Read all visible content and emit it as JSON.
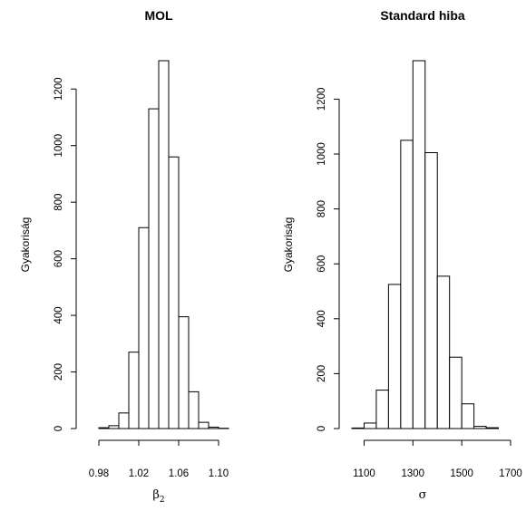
{
  "chart_data": [
    {
      "type": "bar",
      "title": "MOL",
      "ylabel": "Gyakoriság",
      "xlabel": "β",
      "xlabel_subscript": "2",
      "bin_edges": [
        0.98,
        0.99,
        1.0,
        1.01,
        1.02,
        1.03,
        1.04,
        1.05,
        1.06,
        1.07,
        1.08,
        1.09,
        1.1,
        1.11
      ],
      "values": [
        3,
        10,
        55,
        270,
        710,
        1130,
        1300,
        960,
        395,
        130,
        22,
        5,
        1
      ],
      "xlim": [
        0.97,
        1.11
      ],
      "ylim": [
        0,
        1300
      ],
      "xticks": [
        {
          "v": 0.98,
          "label": "0.98"
        },
        {
          "v": 1.02,
          "label": "1.02"
        },
        {
          "v": 1.06,
          "label": "1.06"
        },
        {
          "v": 1.1,
          "label": "1.10"
        }
      ],
      "yticks": [
        {
          "v": 0,
          "label": "0"
        },
        {
          "v": 200,
          "label": "200"
        },
        {
          "v": 400,
          "label": "400"
        },
        {
          "v": 600,
          "label": "600"
        },
        {
          "v": 800,
          "label": "800"
        },
        {
          "v": 1000,
          "label": "1000"
        },
        {
          "v": 1200,
          "label": "1200"
        }
      ],
      "grid": false
    },
    {
      "type": "bar",
      "title": "Standard hiba",
      "ylabel": "Gyakoriság",
      "xlabel": "σ",
      "bin_edges": [
        1050,
        1100,
        1150,
        1200,
        1250,
        1300,
        1350,
        1400,
        1450,
        1500,
        1550,
        1600,
        1650
      ],
      "values": [
        2,
        20,
        140,
        525,
        1050,
        1340,
        1005,
        555,
        260,
        90,
        8,
        3
      ],
      "xlim": [
        1050,
        1700
      ],
      "ylim": [
        0,
        1340
      ],
      "xticks": [
        {
          "v": 1100,
          "label": "1100"
        },
        {
          "v": 1300,
          "label": "1300"
        },
        {
          "v": 1500,
          "label": "1500"
        },
        {
          "v": 1700,
          "label": "1700"
        }
      ],
      "yticks": [
        {
          "v": 0,
          "label": "0"
        },
        {
          "v": 200,
          "label": "200"
        },
        {
          "v": 400,
          "label": "400"
        },
        {
          "v": 600,
          "label": "600"
        },
        {
          "v": 800,
          "label": "800"
        },
        {
          "v": 1000,
          "label": "1000"
        },
        {
          "v": 1200,
          "label": "1200"
        }
      ],
      "grid": false
    }
  ]
}
